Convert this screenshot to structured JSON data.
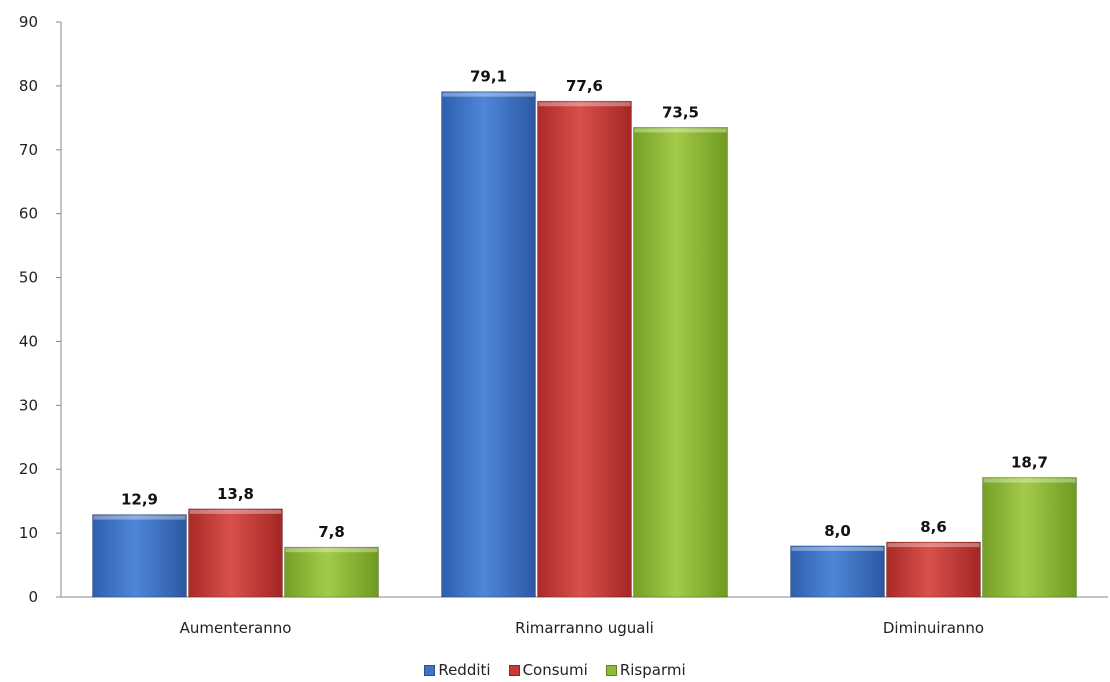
{
  "chart_data": {
    "type": "bar",
    "categories": [
      "Aumenteranno",
      "Rimarranno uguali",
      "Diminuiranno"
    ],
    "series": [
      {
        "name": "Redditi",
        "values": [
          12.9,
          79.1,
          8.0
        ],
        "labels": [
          "12,9",
          "79,1",
          "8,0"
        ],
        "color": "#3f73c8"
      },
      {
        "name": "Consumi",
        "values": [
          13.8,
          77.6,
          8.6
        ],
        "labels": [
          "13,8",
          "77,6",
          "8,6"
        ],
        "color": "#c83a36"
      },
      {
        "name": "Risparmi",
        "values": [
          7.8,
          73.5,
          18.7
        ],
        "labels": [
          "7,8",
          "73,5",
          "18,7"
        ],
        "color": "#8fbb36"
      }
    ],
    "ylim": [
      0,
      90
    ],
    "yticks": [
      0,
      10,
      20,
      30,
      40,
      50,
      60,
      70,
      80,
      90
    ],
    "title": "",
    "xlabel": "",
    "ylabel": "",
    "legend_position": "bottom",
    "grid": false
  }
}
